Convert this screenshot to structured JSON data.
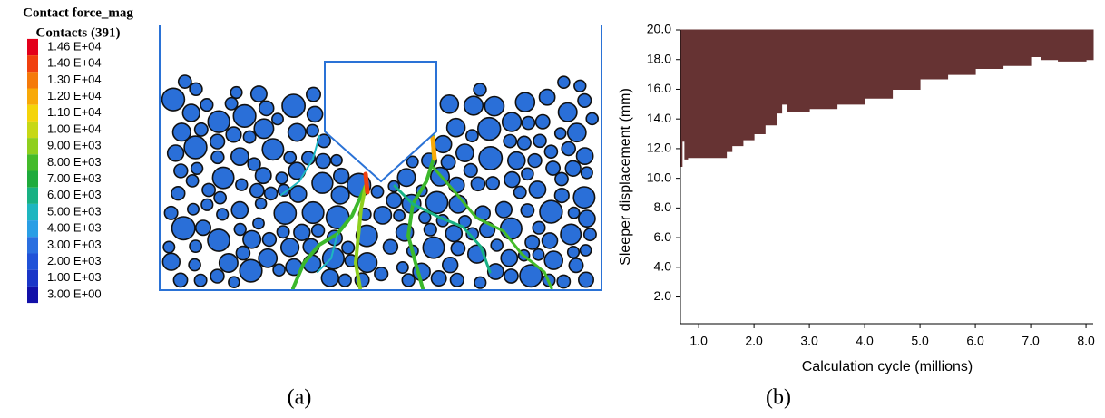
{
  "panel_a": {
    "title": "Contact force_mag",
    "subtitle": "Contacts (391)",
    "legend": [
      {
        "label": "1.46 E+04",
        "color": "#e3001b"
      },
      {
        "label": "1.40 E+04",
        "color": "#f0400f"
      },
      {
        "label": "1.30 E+04",
        "color": "#f57a0a"
      },
      {
        "label": "1.20 E+04",
        "color": "#f8a908"
      },
      {
        "label": "1.10 E+04",
        "color": "#f4d40a"
      },
      {
        "label": "1.00 E+04",
        "color": "#c7d816"
      },
      {
        "label": "9.00 E+03",
        "color": "#8fcf1e"
      },
      {
        "label": "8.00 E+03",
        "color": "#44bb2a"
      },
      {
        "label": "7.00 E+03",
        "color": "#1fab3c"
      },
      {
        "label": "6.00 E+03",
        "color": "#18b183"
      },
      {
        "label": "5.00 E+03",
        "color": "#1eb6c0"
      },
      {
        "label": "4.00 E+03",
        "color": "#2a9ee5"
      },
      {
        "label": "3.00 E+03",
        "color": "#2a6fe0"
      },
      {
        "label": "2.00 E+03",
        "color": "#2052d8"
      },
      {
        "label": "1.00 E+03",
        "color": "#1a36c8"
      },
      {
        "label": "3.00 E+00",
        "color": "#1210a8"
      }
    ],
    "caption": "(a)"
  },
  "chart_data": {
    "type": "area",
    "caption": "(b)",
    "xlabel": "Calculation cycle (millions)",
    "ylabel": "Sleeper displacement (mm)",
    "color": "#663333",
    "x": [
      0.67,
      0.7,
      0.75,
      0.8,
      1.0,
      1.3,
      1.5,
      1.6,
      1.8,
      2.0,
      2.2,
      2.4,
      2.5,
      2.6,
      2.8,
      3.0,
      3.5,
      4.0,
      4.5,
      5.0,
      5.5,
      6.0,
      6.5,
      7.0,
      7.2,
      7.5,
      8.0,
      8.13
    ],
    "values": [
      0.2,
      10.8,
      12.5,
      11.3,
      11.4,
      11.4,
      11.4,
      11.8,
      12.2,
      12.6,
      13.0,
      13.6,
      14.4,
      15.0,
      14.5,
      14.5,
      14.7,
      15.0,
      15.4,
      16.0,
      16.7,
      17.0,
      17.4,
      17.6,
      18.2,
      18.0,
      17.9,
      18.0
    ],
    "xlim": [
      0.67,
      8.13
    ],
    "ylim": [
      0.2,
      20
    ],
    "xticks": [
      {
        "value": 1,
        "label": "1.0"
      },
      {
        "value": 2,
        "label": "2.0"
      },
      {
        "value": 3,
        "label": "3.0"
      },
      {
        "value": 4,
        "label": "4.0"
      },
      {
        "value": 5,
        "label": "5.0"
      },
      {
        "value": 6,
        "label": "6.0"
      },
      {
        "value": 7,
        "label": "7.0"
      },
      {
        "value": 8,
        "label": "8.0"
      }
    ],
    "yticks": [
      {
        "value": 2,
        "label": "2.0"
      },
      {
        "value": 4,
        "label": "4.0"
      },
      {
        "value": 6,
        "label": "6.0"
      },
      {
        "value": 8,
        "label": "8.0"
      },
      {
        "value": 10,
        "label": "10.0"
      },
      {
        "value": 12,
        "label": "12.0"
      },
      {
        "value": 14,
        "label": "14.0"
      },
      {
        "value": 16,
        "label": "16.0"
      },
      {
        "value": 18,
        "label": "18.0"
      },
      {
        "value": 20,
        "label": "20.0"
      }
    ]
  }
}
